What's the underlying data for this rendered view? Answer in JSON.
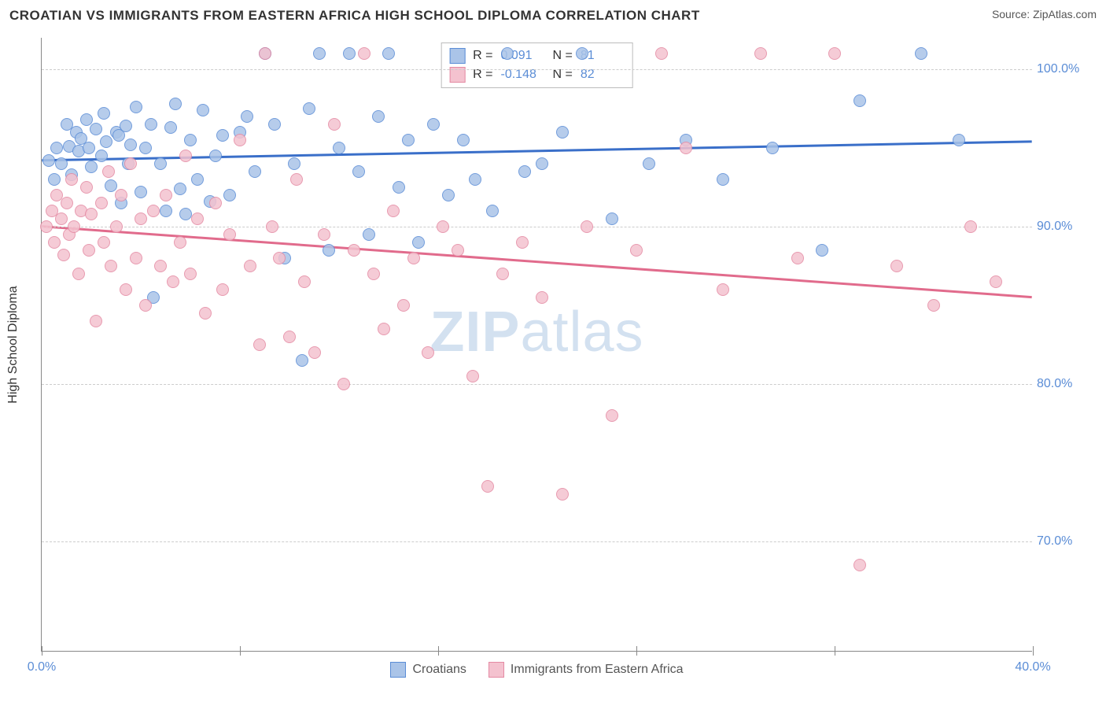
{
  "title": "CROATIAN VS IMMIGRANTS FROM EASTERN AFRICA HIGH SCHOOL DIPLOMA CORRELATION CHART",
  "source_label": "Source:",
  "source_name": "ZipAtlas.com",
  "y_axis_title": "High School Diploma",
  "watermark_a": "ZIP",
  "watermark_b": "atlas",
  "chart": {
    "type": "scatter",
    "xlim": [
      0,
      40
    ],
    "ylim": [
      63,
      102
    ],
    "y_ticks": [
      70,
      80,
      90,
      100
    ],
    "y_tick_labels": [
      "70.0%",
      "80.0%",
      "90.0%",
      "100.0%"
    ],
    "x_ticks": [
      0,
      8,
      16,
      24,
      32,
      40
    ],
    "x_tick_labels": [
      "0.0%",
      "",
      "",
      "",
      "",
      "40.0%"
    ],
    "background_color": "#ffffff",
    "grid_color": "#cccccc",
    "marker_radius": 8,
    "marker_stroke_width": 1,
    "trend_line_width": 3,
    "series": [
      {
        "key": "croatians",
        "label": "Croatians",
        "fill": "#aac4e8",
        "stroke": "#5b8dd6",
        "line_color": "#3a6fc9",
        "R": "0.091",
        "N": "81",
        "trend": {
          "y_at_xmin": 94.2,
          "y_at_xmax": 95.4
        },
        "points": [
          [
            0.3,
            94.2
          ],
          [
            0.5,
            93.0
          ],
          [
            0.6,
            95.0
          ],
          [
            0.8,
            94.0
          ],
          [
            1.0,
            96.5
          ],
          [
            1.1,
            95.1
          ],
          [
            1.2,
            93.3
          ],
          [
            1.4,
            96.0
          ],
          [
            1.5,
            94.8
          ],
          [
            1.6,
            95.6
          ],
          [
            1.8,
            96.8
          ],
          [
            1.9,
            95.0
          ],
          [
            2.0,
            93.8
          ],
          [
            2.2,
            96.2
          ],
          [
            2.4,
            94.5
          ],
          [
            2.5,
            97.2
          ],
          [
            2.6,
            95.4
          ],
          [
            2.8,
            92.6
          ],
          [
            3.0,
            96.0
          ],
          [
            3.1,
            95.8
          ],
          [
            3.2,
            91.5
          ],
          [
            3.4,
            96.4
          ],
          [
            3.5,
            94.0
          ],
          [
            3.6,
            95.2
          ],
          [
            3.8,
            97.6
          ],
          [
            4.0,
            92.2
          ],
          [
            4.2,
            95.0
          ],
          [
            4.4,
            96.5
          ],
          [
            4.5,
            85.5
          ],
          [
            4.8,
            94.0
          ],
          [
            5.0,
            91.0
          ],
          [
            5.2,
            96.3
          ],
          [
            5.4,
            97.8
          ],
          [
            5.6,
            92.4
          ],
          [
            5.8,
            90.8
          ],
          [
            6.0,
            95.5
          ],
          [
            6.3,
            93.0
          ],
          [
            6.5,
            97.4
          ],
          [
            6.8,
            91.6
          ],
          [
            7.0,
            94.5
          ],
          [
            7.3,
            95.8
          ],
          [
            7.6,
            92.0
          ],
          [
            8.0,
            96.0
          ],
          [
            8.3,
            97.0
          ],
          [
            8.6,
            93.5
          ],
          [
            9.0,
            101.0
          ],
          [
            9.4,
            96.5
          ],
          [
            9.8,
            88.0
          ],
          [
            10.2,
            94.0
          ],
          [
            10.5,
            81.5
          ],
          [
            10.8,
            97.5
          ],
          [
            11.2,
            101.0
          ],
          [
            11.6,
            88.5
          ],
          [
            12.0,
            95.0
          ],
          [
            12.4,
            101.0
          ],
          [
            12.8,
            93.5
          ],
          [
            13.2,
            89.5
          ],
          [
            13.6,
            97.0
          ],
          [
            14.0,
            101.0
          ],
          [
            14.4,
            92.5
          ],
          [
            14.8,
            95.5
          ],
          [
            15.2,
            89.0
          ],
          [
            15.8,
            96.5
          ],
          [
            16.4,
            92.0
          ],
          [
            17.0,
            95.5
          ],
          [
            17.5,
            93.0
          ],
          [
            18.2,
            91.0
          ],
          [
            18.8,
            101.0
          ],
          [
            19.5,
            93.5
          ],
          [
            20.2,
            94.0
          ],
          [
            21.0,
            96.0
          ],
          [
            21.8,
            101.0
          ],
          [
            23.0,
            90.5
          ],
          [
            24.5,
            94.0
          ],
          [
            26.0,
            95.5
          ],
          [
            27.5,
            93.0
          ],
          [
            29.5,
            95.0
          ],
          [
            31.5,
            88.5
          ],
          [
            33.0,
            98.0
          ],
          [
            35.5,
            101.0
          ],
          [
            37.0,
            95.5
          ]
        ]
      },
      {
        "key": "immigrants",
        "label": "Immigrants from Eastern Africa",
        "fill": "#f4c2cf",
        "stroke": "#e48aa3",
        "line_color": "#e16b8c",
        "R": "-0.148",
        "N": "82",
        "trend": {
          "y_at_xmin": 90.0,
          "y_at_xmax": 85.5
        },
        "points": [
          [
            0.2,
            90.0
          ],
          [
            0.4,
            91.0
          ],
          [
            0.5,
            89.0
          ],
          [
            0.6,
            92.0
          ],
          [
            0.8,
            90.5
          ],
          [
            0.9,
            88.2
          ],
          [
            1.0,
            91.5
          ],
          [
            1.1,
            89.5
          ],
          [
            1.2,
            93.0
          ],
          [
            1.3,
            90.0
          ],
          [
            1.5,
            87.0
          ],
          [
            1.6,
            91.0
          ],
          [
            1.8,
            92.5
          ],
          [
            1.9,
            88.5
          ],
          [
            2.0,
            90.8
          ],
          [
            2.2,
            84.0
          ],
          [
            2.4,
            91.5
          ],
          [
            2.5,
            89.0
          ],
          [
            2.7,
            93.5
          ],
          [
            2.8,
            87.5
          ],
          [
            3.0,
            90.0
          ],
          [
            3.2,
            92.0
          ],
          [
            3.4,
            86.0
          ],
          [
            3.6,
            94.0
          ],
          [
            3.8,
            88.0
          ],
          [
            4.0,
            90.5
          ],
          [
            4.2,
            85.0
          ],
          [
            4.5,
            91.0
          ],
          [
            4.8,
            87.5
          ],
          [
            5.0,
            92.0
          ],
          [
            5.3,
            86.5
          ],
          [
            5.6,
            89.0
          ],
          [
            5.8,
            94.5
          ],
          [
            6.0,
            87.0
          ],
          [
            6.3,
            90.5
          ],
          [
            6.6,
            84.5
          ],
          [
            7.0,
            91.5
          ],
          [
            7.3,
            86.0
          ],
          [
            7.6,
            89.5
          ],
          [
            8.0,
            95.5
          ],
          [
            8.4,
            87.5
          ],
          [
            8.8,
            82.5
          ],
          [
            9.0,
            101.0
          ],
          [
            9.3,
            90.0
          ],
          [
            9.6,
            88.0
          ],
          [
            10.0,
            83.0
          ],
          [
            10.3,
            93.0
          ],
          [
            10.6,
            86.5
          ],
          [
            11.0,
            82.0
          ],
          [
            11.4,
            89.5
          ],
          [
            11.8,
            96.5
          ],
          [
            12.2,
            80.0
          ],
          [
            12.6,
            88.5
          ],
          [
            13.0,
            101.0
          ],
          [
            13.4,
            87.0
          ],
          [
            13.8,
            83.5
          ],
          [
            14.2,
            91.0
          ],
          [
            14.6,
            85.0
          ],
          [
            15.0,
            88.0
          ],
          [
            15.6,
            82.0
          ],
          [
            16.2,
            90.0
          ],
          [
            16.8,
            88.5
          ],
          [
            17.4,
            80.5
          ],
          [
            18.0,
            73.5
          ],
          [
            18.6,
            87.0
          ],
          [
            19.4,
            89.0
          ],
          [
            20.2,
            85.5
          ],
          [
            21.0,
            73.0
          ],
          [
            22.0,
            90.0
          ],
          [
            23.0,
            78.0
          ],
          [
            24.0,
            88.5
          ],
          [
            25.0,
            101.0
          ],
          [
            26.0,
            95.0
          ],
          [
            27.5,
            86.0
          ],
          [
            29.0,
            101.0
          ],
          [
            30.5,
            88.0
          ],
          [
            32.0,
            101.0
          ],
          [
            33.0,
            68.5
          ],
          [
            34.5,
            87.5
          ],
          [
            36.0,
            85.0
          ],
          [
            37.5,
            90.0
          ],
          [
            38.5,
            86.5
          ]
        ]
      }
    ]
  },
  "legend_top": {
    "r_label": "R =",
    "n_label": "N ="
  }
}
